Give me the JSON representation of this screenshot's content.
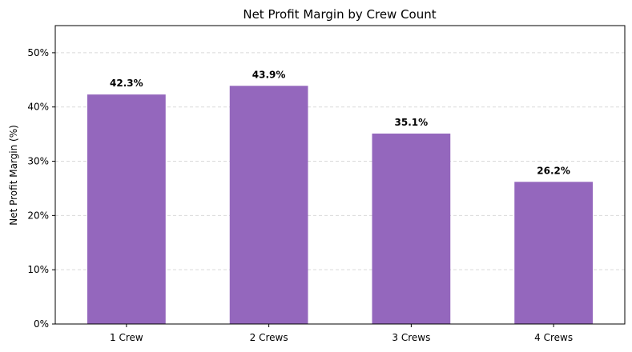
{
  "chart_data": {
    "type": "bar",
    "title": "Net Profit Margin by Crew Count",
    "xlabel": "",
    "ylabel": "Net Profit Margin (%)",
    "categories": [
      "1 Crew",
      "2 Crews",
      "3 Crews",
      "4 Crews"
    ],
    "values": [
      42.3,
      43.9,
      35.1,
      26.2
    ],
    "data_labels": [
      "42.3%",
      "43.9%",
      "35.1%",
      "26.2%"
    ],
    "ylim": [
      0,
      55
    ],
    "yticks": [
      0,
      10,
      20,
      30,
      40,
      50
    ],
    "ytick_labels": [
      "0%",
      "10%",
      "20%",
      "30%",
      "40%",
      "50%"
    ],
    "grid": "y-dashed",
    "bar_color": "#9467bd"
  }
}
